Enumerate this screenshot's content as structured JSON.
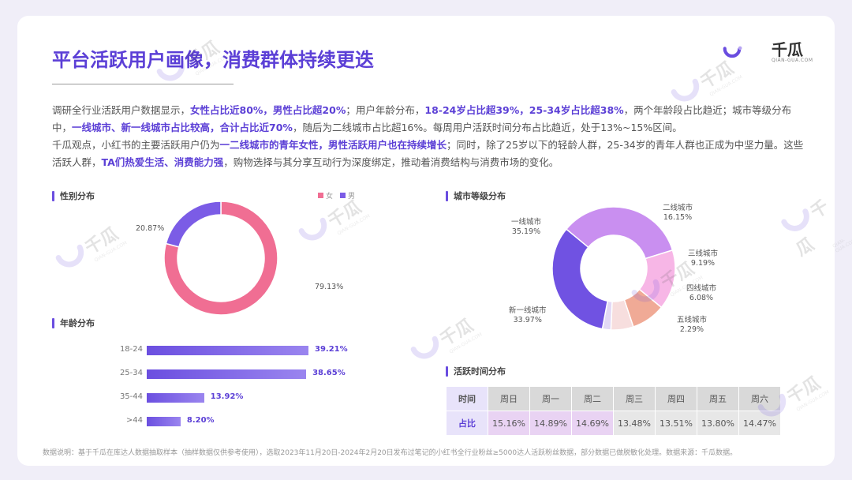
{
  "title": "平台活跃用户画像，消费群体持续更迭",
  "logo": {
    "name": "千瓜",
    "sub": "QIAN-GUA.COM"
  },
  "watermark": {
    "name": "千瓜",
    "sub": "QIAN-GUA.COM"
  },
  "intro": {
    "p1": [
      {
        "t": "调研全行业活跃用户数据显示，",
        "hl": false
      },
      {
        "t": "女性占比近80%，男性占比超20%",
        "hl": true
      },
      {
        "t": "；用户年龄分布，",
        "hl": false
      },
      {
        "t": "18-24岁占比超39%，25-34岁占比超38%",
        "hl": true
      },
      {
        "t": "，两个年龄段占比趋近；城市等级分布中，",
        "hl": false
      },
      {
        "t": "一线城市、新一线城市占比较高，合计占比近70%",
        "hl": true
      },
      {
        "t": "，随后为二线城市占比超16%。每周用户活跃时间分布占比趋近，处于13%~15%区间。",
        "hl": false
      }
    ],
    "p2": [
      {
        "t": "千瓜观点，小红书的主要活跃用户仍为",
        "hl": false
      },
      {
        "t": "一二线城市的青年女性，男性活跃用户也在持续增长",
        "hl": true
      },
      {
        "t": "；同时，除了25岁以下的轻龄人群，25-34岁的青年人群也正成为中坚力量。这些活跃人群，",
        "hl": false
      },
      {
        "t": "TA们热爱生活、消费能力强",
        "hl": true
      },
      {
        "t": "，购物选择与其分享互动行为深度绑定，推动着消费结构与消费市场的变化。",
        "hl": false
      }
    ]
  },
  "sections": {
    "gender": "性别分布",
    "city": "城市等级分布",
    "age": "年龄分布",
    "time": "活跃时间分布"
  },
  "colors": {
    "accent": "#5b3fd6",
    "female": "#f06e93",
    "male": "#7b5ce6"
  },
  "chart_data": [
    {
      "type": "pie",
      "labels": [
        "女",
        "男"
      ],
      "values": [
        79.13,
        20.87
      ],
      "value_labels": [
        "79.13%",
        "20.87%"
      ],
      "colors": [
        "#f06e93",
        "#7b5ce6"
      ],
      "legend": "top-right"
    },
    {
      "type": "pie",
      "labels": [
        "一线城市",
        "二线城市",
        "三线城市",
        "四线城市",
        "五线城市",
        "新一线城市"
      ],
      "values": [
        35.19,
        16.15,
        9.19,
        6.08,
        2.29,
        33.97
      ],
      "value_labels": [
        "35.19%",
        "16.15%",
        "9.19%",
        "6.08%",
        "2.29%",
        "33.97%"
      ],
      "colors": [
        "#c98ff0",
        "#f7b6e6",
        "#f0aa96",
        "#f7dede",
        "#e2d8f5",
        "#7052e2"
      ]
    },
    {
      "type": "bar",
      "categories": [
        "18-24",
        "25-34",
        "35-44",
        ">44"
      ],
      "values": [
        39.21,
        38.65,
        13.92,
        8.2
      ],
      "value_labels": [
        "39.21%",
        "38.65%",
        "13.92%",
        "8.20%"
      ]
    },
    {
      "type": "table",
      "header_label": "时间",
      "row_label": "占比",
      "columns": [
        "周日",
        "周一",
        "周二",
        "周三",
        "周四",
        "周五",
        "周六"
      ],
      "values": [
        "15.16%",
        "14.89%",
        "14.69%",
        "13.48%",
        "13.51%",
        "13.80%",
        "14.47%"
      ]
    }
  ],
  "footnote": "数据说明：基于千瓜在库达人数据抽取样本（抽样数据仅供参考使用），选取2023年11月20日-2024年2月20日发布过笔记的小红书全行业粉丝≥5000达人活跃粉丝数据，部分数据已做脱敏化处理。数据来源：千瓜数据。"
}
